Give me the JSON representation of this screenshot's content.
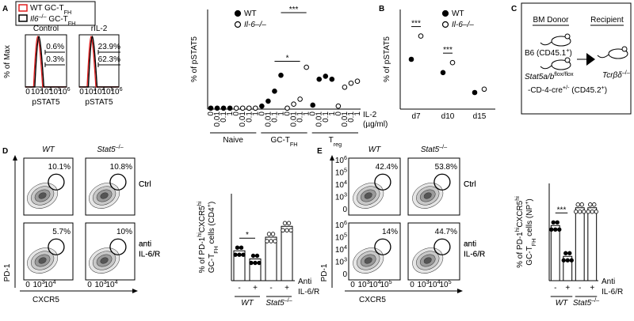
{
  "panel_labels": [
    "A",
    "B",
    "C",
    "D",
    "E"
  ],
  "histograms": {
    "legend": [
      [
        "WT GC-T",
        "FH"
      ],
      [
        "Il6",
        "–/–",
        " GC-T",
        "FH"
      ]
    ],
    "titles": [
      "Control",
      "rIL-2"
    ],
    "y_label": "% of Max",
    "x_label": "pSTAT5",
    "x_ticks": [
      [
        "0"
      ],
      [
        "10",
        "3"
      ],
      [
        "10",
        "4"
      ],
      [
        "10",
        "5"
      ],
      [
        "10",
        "6"
      ]
    ],
    "gates": [
      [
        "0.6%",
        "0.3%"
      ],
      [
        "23.9%",
        "62.3%"
      ]
    ]
  },
  "chart_data": [
    {
      "type": "dot",
      "y_label": "% of pSTAT5",
      "ylim": [
        0,
        100
      ],
      "categories": [
        "0",
        "0.01",
        "0.1",
        "1",
        "0",
        "0.01",
        "0.1",
        "1",
        "0",
        "0.01",
        "0.1",
        "1"
      ],
      "groups": [
        [
          "Naive"
        ],
        [
          "GC-T",
          "FH"
        ],
        [
          "T",
          "reg"
        ]
      ],
      "x_label": [
        "IL-2",
        "(µg/ml)"
      ],
      "series": [
        {
          "name": "WT",
          "color": "#000000",
          "filled": true,
          "values": [
            1,
            1,
            1,
            1,
            3,
            8,
            18,
            34,
            4,
            30,
            33,
            30
          ]
        },
        {
          "name": "Il-6–/–",
          "color": "#000000",
          "filled": false,
          "values": [
            1,
            1,
            1,
            1,
            1,
            5,
            10,
            42,
            3,
            22,
            26,
            28
          ]
        }
      ],
      "annotations": [
        "*",
        "***"
      ]
    },
    {
      "type": "dot",
      "y_label": "% of pSTAT5",
      "ylim": [
        0,
        60
      ],
      "categories": [
        "d7",
        "d10",
        "d15"
      ],
      "series": [
        {
          "name": "WT",
          "color": "#000000",
          "filled": true,
          "values": [
            30,
            22,
            10
          ]
        },
        {
          "name": "Il-6–/–",
          "color": "#000000",
          "filled": false,
          "values": [
            44,
            28,
            12
          ]
        }
      ],
      "annotations": [
        "***",
        "***"
      ]
    },
    {
      "type": "bar",
      "y_label": [
        [
          "% of PD-1",
          "hi",
          "CXCR5",
          "hi"
        ],
        [
          "GC-T",
          "FH",
          " cells (CD4",
          "+",
          ")"
        ]
      ],
      "ylim": [
        0,
        16
      ],
      "categories": [
        "-",
        "+",
        "-",
        "+"
      ],
      "groups": [
        [
          "WT"
        ],
        [
          "Stat5",
          "–/–"
        ]
      ],
      "x_label": [
        "Anti",
        "IL-6/R"
      ],
      "values": [
        5.5,
        4,
        8,
        10
      ],
      "color": "#ffffff",
      "annotations": [
        "*"
      ]
    },
    {
      "type": "bar",
      "y_label": [
        [
          "% of PD-1",
          "hi",
          "CXCR5",
          "hi"
        ],
        [
          "GC-T",
          "FH",
          " cells (NP",
          "+",
          ")"
        ]
      ],
      "ylim": [
        0,
        60
      ],
      "categories": [
        "-",
        "+",
        "-",
        "+"
      ],
      "groups": [
        [
          "WT"
        ],
        [
          "Stat5",
          "–/–"
        ]
      ],
      "x_label": [
        "Anti",
        "IL-6/R"
      ],
      "values": [
        34,
        15,
        45,
        45
      ],
      "color": "#ffffff",
      "annotations": [
        "***"
      ]
    }
  ],
  "flow_d": {
    "col_titles": [
      [
        "WT"
      ],
      [
        "Stat5",
        "–/–"
      ]
    ],
    "row_labels": [
      [
        "Ctrl"
      ],
      [
        "anti",
        "IL-6/R"
      ]
    ],
    "gates": [
      "10.1%",
      "10.8%",
      "5.7%",
      "10%"
    ],
    "y_label": "PD-1",
    "x_label": "CXCR5",
    "x_ticks": [
      [
        "0"
      ],
      [
        "10",
        "3"
      ],
      [
        "10",
        "4"
      ]
    ]
  },
  "flow_e": {
    "col_titles": [
      [
        "WT"
      ],
      [
        "Stat5",
        "–/–"
      ]
    ],
    "row_labels": [
      [
        "Ctrl"
      ],
      [
        "anti",
        "IL-6/R"
      ]
    ],
    "gates": [
      "42.4%",
      "53.8%",
      "14%",
      "44.7%"
    ],
    "y_label": "PD-1",
    "x_label": "CXCR5",
    "x_ticks": [
      [
        "0"
      ],
      [
        "10",
        "3"
      ],
      [
        "10",
        "4"
      ],
      [
        "10",
        "5"
      ]
    ],
    "y_ticks": [
      [
        "10",
        "6"
      ],
      [
        "10",
        "5"
      ],
      [
        "10",
        "4"
      ],
      [
        "10",
        "3"
      ],
      [
        "0"
      ]
    ]
  },
  "diagram": {
    "donor": "BM Donor",
    "recipient": "Recipient",
    "b6": [
      "B6 (CD45.1",
      "+",
      ")"
    ],
    "stat5": [
      "Stat5a/b",
      "flox/flox"
    ],
    "cre": [
      "-CD-4-cre",
      "+/-",
      " (CD45.2",
      "+",
      ")"
    ],
    "tcr": [
      "Tcrβδ",
      "–/–"
    ]
  }
}
